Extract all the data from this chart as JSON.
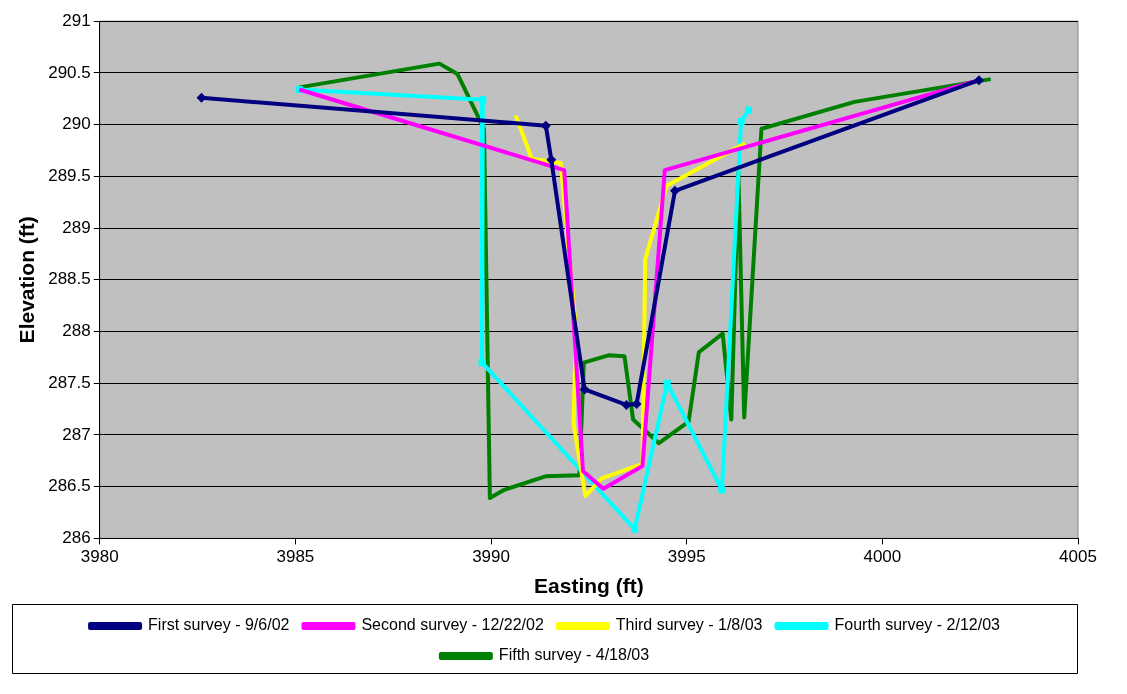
{
  "chart_data": {
    "type": "line",
    "xlabel": "Easting (ft)",
    "ylabel": "Elevation (ft)",
    "xlim": [
      3980,
      4005
    ],
    "xticks": [
      3980,
      3985,
      3990,
      3995,
      4000,
      4005
    ],
    "ylim": [
      286,
      291
    ],
    "yticks": [
      286,
      286.5,
      287,
      287.5,
      288,
      288.5,
      289,
      289.5,
      290,
      290.5,
      291
    ],
    "grid": "y",
    "legend": "bottom",
    "line_style": "solid",
    "series": [
      {
        "name": "First survey - 9/6/02",
        "color": "#000080",
        "marker": "diamond",
        "x": [
          3982.6,
          3991.4,
          3991.54,
          3992.39,
          3993.46,
          3993.72,
          3994.7,
          4002.47
        ],
        "values": [
          290.26,
          289.99,
          289.66,
          287.44,
          287.29,
          287.3,
          289.36,
          290.43
        ]
      },
      {
        "name": "Second survey - 12/22/02",
        "color": "#ff00ff",
        "marker": "none",
        "x": [
          3985.1,
          3991.87,
          3992.35,
          3992.87,
          3993.87,
          3994.44,
          4002.47
        ],
        "values": [
          290.34,
          289.56,
          286.65,
          286.48,
          286.7,
          289.56,
          290.43
        ]
      },
      {
        "name": "Third survey - 1/8/03",
        "color": "#ffff00",
        "marker": "none",
        "x": [
          3990.63,
          3991.04,
          3991.78,
          3992.17,
          3992.11,
          3992.41,
          3992.83,
          3993.87,
          3993.94,
          3994.49,
          3996.49
        ],
        "values": [
          290.09,
          289.67,
          289.63,
          288.03,
          287.11,
          286.41,
          286.58,
          286.72,
          288.7,
          289.41,
          289.82
        ]
      },
      {
        "name": "Fourth survey - 2/12/03",
        "color": "#00ffff",
        "marker": "square",
        "x": [
          3985.1,
          3989.79,
          3989.77,
          3993.67,
          3994.5,
          3995.9,
          3996.39,
          3996.58
        ],
        "values": [
          290.34,
          290.24,
          287.7,
          286.09,
          287.5,
          286.47,
          290.03,
          290.14
        ]
      },
      {
        "name": "Fifth survey - 4/18/03",
        "color": "#008000",
        "marker": "none",
        "x": [
          3985.1,
          3988.68,
          3989.14,
          3989.82,
          3989.97,
          3990.34,
          3991.39,
          3992.26,
          3992.37,
          3993.0,
          3993.41,
          3993.63,
          3994.29,
          3995.05,
          3995.31,
          3995.92,
          3996.14,
          3996.32,
          3996.47,
          3996.91,
          3999.29,
          4002.77
        ],
        "values": [
          290.36,
          290.59,
          290.49,
          289.96,
          286.39,
          286.47,
          286.6,
          286.61,
          287.7,
          287.77,
          287.76,
          287.15,
          286.92,
          287.13,
          287.8,
          287.98,
          287.15,
          289.54,
          287.17,
          289.96,
          290.22,
          290.44
        ]
      }
    ]
  }
}
